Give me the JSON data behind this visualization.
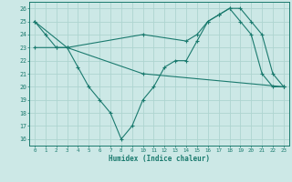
{
  "line1_x": [
    0,
    1,
    2,
    3,
    4,
    5,
    6,
    7,
    8,
    9,
    10,
    11,
    12,
    13,
    14,
    15,
    16,
    17,
    18,
    19,
    20,
    21,
    22,
    23
  ],
  "line1_y": [
    25,
    24,
    23,
    23,
    21.5,
    20,
    19,
    18,
    16,
    17,
    19,
    20,
    21.5,
    22,
    22,
    23.5,
    25,
    25.5,
    26,
    25,
    24,
    21,
    20,
    20
  ],
  "line2_x": [
    0,
    3,
    10,
    23
  ],
  "line2_y": [
    25,
    23,
    21,
    20
  ],
  "line3_x": [
    0,
    2,
    3,
    10,
    14,
    15,
    16,
    17,
    18,
    19,
    20,
    21,
    22,
    23
  ],
  "line3_y": [
    23,
    23,
    23,
    24,
    23.5,
    24,
    25,
    25.5,
    26,
    26,
    25,
    24,
    21,
    20
  ],
  "color": "#1a7a6e",
  "bg_color": "#cce8e6",
  "grid_color": "#aed4d0",
  "xlabel": "Humidex (Indice chaleur)",
  "xlim": [
    -0.5,
    23.5
  ],
  "ylim": [
    15.5,
    26.5
  ],
  "xticks": [
    0,
    1,
    2,
    3,
    4,
    5,
    6,
    7,
    8,
    9,
    10,
    11,
    12,
    13,
    14,
    15,
    16,
    17,
    18,
    19,
    20,
    21,
    22,
    23
  ],
  "yticks": [
    16,
    17,
    18,
    19,
    20,
    21,
    22,
    23,
    24,
    25,
    26
  ]
}
